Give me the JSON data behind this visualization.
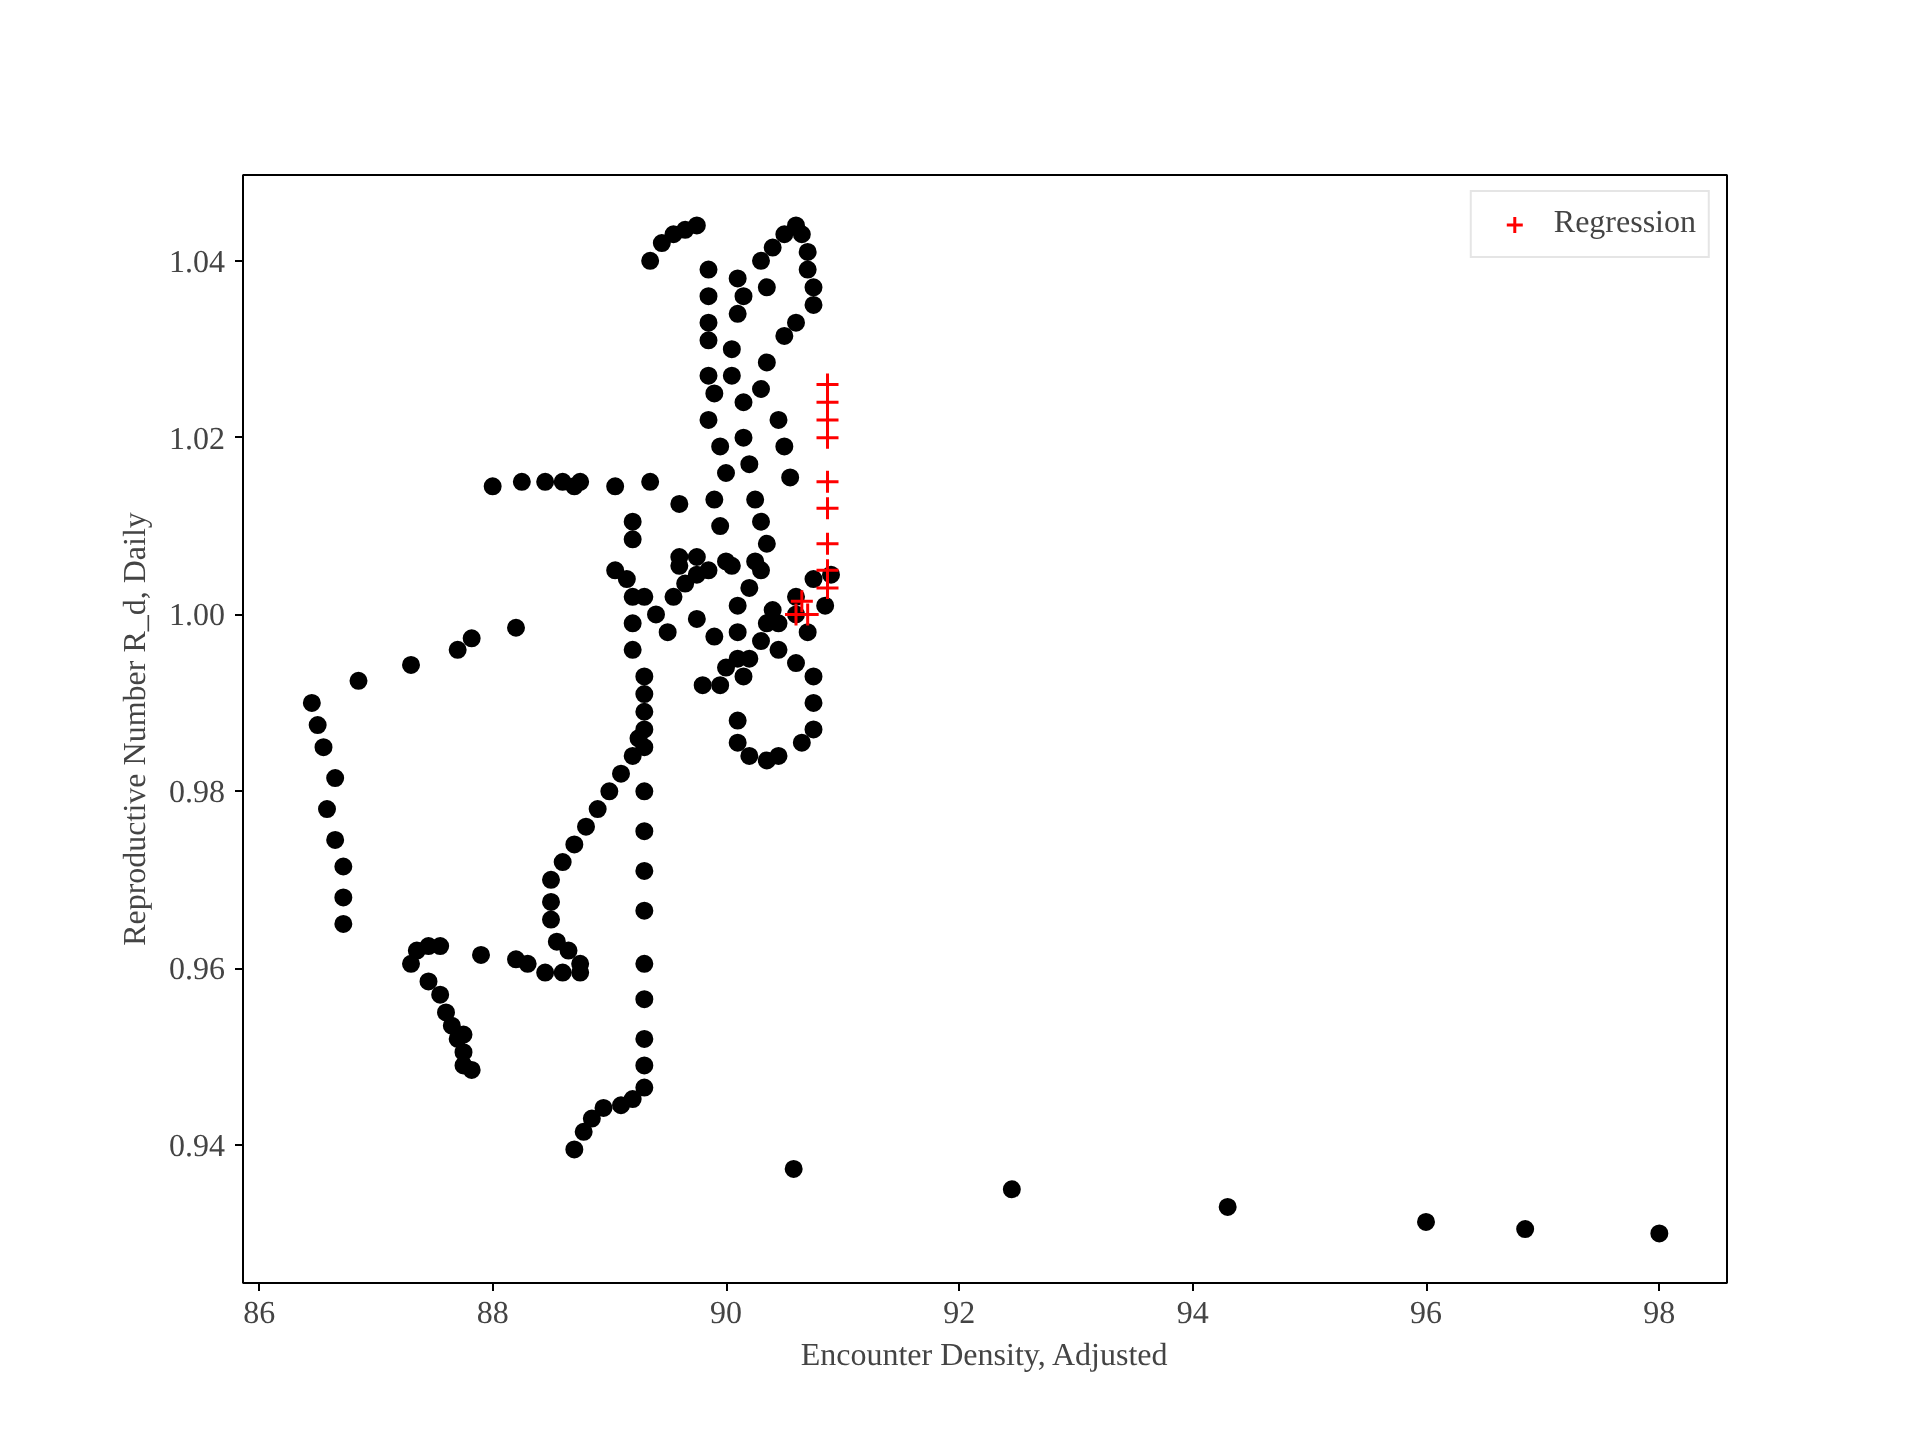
{
  "chart_data": {
    "type": "scatter",
    "xlabel": "Encounter Density, Adjusted",
    "ylabel": "Reproductive Number R_d, Daily",
    "xlim": [
      85.86,
      98.58
    ],
    "ylim": [
      0.9244,
      1.0497
    ],
    "xticks": [
      86,
      88,
      90,
      92,
      94,
      96,
      98
    ],
    "yticks": [
      0.94,
      0.96,
      0.98,
      {
        "value": 1.0,
        "label": "1.00"
      },
      1.02,
      1.04
    ],
    "grid": false,
    "legend": "top right",
    "series": [
      {
        "color": "#000000",
        "marker": "circle",
        "x": [
          90.58,
          92.45,
          94.3,
          96.0,
          96.85,
          98.0,
          88.7,
          88.78,
          88.85,
          88.95,
          89.1,
          89.2,
          89.3,
          89.3,
          89.3,
          89.3,
          89.3,
          89.3,
          89.3,
          89.3,
          89.3,
          89.3,
          88.5,
          88.5,
          88.6,
          88.7,
          88.8,
          88.9,
          89.0,
          89.1,
          89.2,
          89.25,
          88.5,
          88.55,
          88.65,
          88.75,
          88.75,
          88.6,
          88.45,
          88.3,
          88.2,
          87.9,
          87.3,
          87.35,
          87.45,
          87.55,
          87.45,
          87.55,
          87.6,
          87.65,
          87.7,
          87.75,
          87.75,
          87.82,
          87.75,
          86.45,
          86.5,
          86.55,
          86.65,
          86.58,
          86.65,
          86.72,
          86.72,
          86.72,
          86.85,
          87.3,
          87.7,
          87.82,
          88.2,
          88.0,
          88.25,
          88.45,
          88.6,
          88.7,
          88.75,
          89.05,
          89.3,
          89.3,
          89.3,
          89.3,
          89.2,
          89.2,
          89.2,
          89.05,
          89.15,
          89.3,
          89.4,
          89.5,
          89.2,
          89.2,
          89.35,
          89.6,
          89.6,
          89.85,
          89.85,
          89.85,
          89.85,
          89.85,
          89.9,
          89.85,
          89.95,
          90.0,
          89.9,
          89.95,
          90.0,
          89.85,
          89.75,
          89.65,
          89.55,
          89.35,
          89.45,
          89.55,
          89.65,
          89.75,
          90.1,
          90.15,
          90.1,
          90.05,
          90.05,
          90.15,
          90.15,
          90.2,
          90.25,
          90.3,
          90.35,
          90.3,
          90.2,
          90.1,
          90.1,
          90.1,
          90.15,
          90.3,
          90.4,
          90.5,
          90.6,
          90.65,
          90.7,
          90.7,
          90.75,
          90.75,
          90.6,
          90.5,
          90.35,
          90.35,
          90.3,
          90.45,
          90.5,
          90.55,
          90.1,
          90.1,
          90.2,
          90.35,
          90.45,
          90.65,
          90.75,
          90.75,
          90.75,
          90.6,
          90.45,
          90.45,
          90.6,
          90.75,
          90.9,
          90.85,
          90.7,
          90.6,
          89.8,
          89.95,
          90.0,
          90.2,
          90.3,
          89.9,
          89.75,
          89.6,
          89.75,
          90.05,
          90.25,
          90.4,
          90.35
        ],
        "values": [
          0.9373,
          0.935,
          0.933,
          0.9313,
          0.9305,
          0.93,
          0.9395,
          0.9415,
          0.943,
          0.9442,
          0.9445,
          0.9452,
          0.9465,
          0.949,
          0.952,
          0.9565,
          0.9605,
          0.9665,
          0.971,
          0.9755,
          0.98,
          0.985,
          0.9675,
          0.97,
          0.972,
          0.974,
          0.976,
          0.978,
          0.98,
          0.982,
          0.984,
          0.986,
          0.9655,
          0.963,
          0.962,
          0.9605,
          0.9595,
          0.9595,
          0.9595,
          0.9605,
          0.961,
          0.9615,
          0.9605,
          0.962,
          0.9625,
          0.9625,
          0.9585,
          0.957,
          0.955,
          0.9535,
          0.952,
          0.9505,
          0.949,
          0.9485,
          0.9525,
          0.99,
          0.9875,
          0.985,
          0.9815,
          0.978,
          0.9745,
          0.9715,
          0.968,
          0.965,
          0.9925,
          0.9943,
          0.996,
          0.9973,
          0.9985,
          1.0145,
          1.015,
          1.015,
          1.015,
          1.0145,
          1.015,
          1.0145,
          0.987,
          0.989,
          0.991,
          0.993,
          0.996,
          0.999,
          1.002,
          1.005,
          1.004,
          1.002,
          1.0,
          0.998,
          1.0105,
          1.0085,
          1.015,
          1.0125,
          1.0065,
          1.039,
          1.036,
          1.033,
          1.031,
          1.027,
          1.025,
          1.022,
          1.019,
          1.016,
          1.013,
          1.01,
          1.006,
          1.005,
          1.0045,
          1.0035,
          1.002,
          1.04,
          1.042,
          1.043,
          1.0435,
          1.044,
          1.038,
          1.036,
          1.034,
          1.03,
          1.027,
          1.024,
          1.02,
          1.017,
          1.013,
          1.0105,
          1.008,
          1.005,
          1.003,
          1.001,
          0.998,
          0.995,
          0.993,
          1.04,
          1.0415,
          1.043,
          1.044,
          1.043,
          1.041,
          1.039,
          1.037,
          1.035,
          1.033,
          1.0315,
          1.037,
          1.0285,
          1.0255,
          1.022,
          1.019,
          1.0155,
          0.988,
          0.9855,
          0.984,
          0.9835,
          0.984,
          0.9855,
          0.987,
          0.99,
          0.993,
          0.9945,
          0.996,
          0.999,
          1.002,
          1.004,
          1.0045,
          1.001,
          0.998,
          1.0,
          0.992,
          0.992,
          0.994,
          0.995,
          0.997,
          0.9975,
          0.9995,
          1.0055,
          1.0065,
          1.0055,
          1.006,
          1.0005,
          0.999
        ]
      },
      {
        "name": "Regression",
        "color": "#ff0000",
        "marker": "cross",
        "x": [
          90.87,
          90.87,
          90.87,
          90.87,
          90.87,
          90.87,
          90.87,
          90.87,
          90.87,
          90.65,
          90.6,
          90.7
        ],
        "values": [
          1.026,
          1.024,
          1.022,
          1.02,
          1.015,
          1.012,
          1.008,
          1.005,
          1.003,
          1.0015,
          1.0,
          1.0
        ]
      }
    ]
  }
}
